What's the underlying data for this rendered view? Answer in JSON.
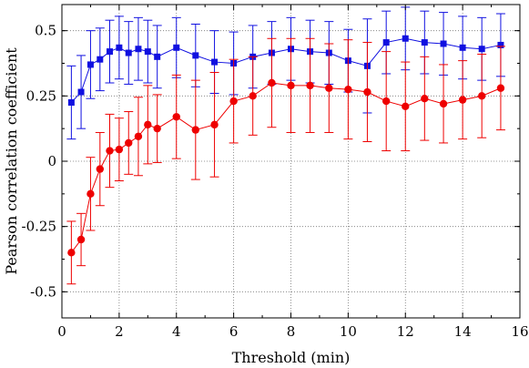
{
  "chart_data": {
    "type": "scatter",
    "xlabel": "Threshold (min)",
    "ylabel": "Pearson correlation coefficient",
    "xlim": [
      0,
      16
    ],
    "ylim": [
      -0.6,
      0.6
    ],
    "xticks": [
      0,
      2,
      4,
      6,
      8,
      10,
      12,
      14,
      16
    ],
    "xtick_labels": [
      "0",
      "2",
      "4",
      "6",
      "8",
      "10",
      "12",
      "14",
      "16"
    ],
    "yticks": [
      -0.5,
      -0.25,
      0,
      0.25,
      0.5
    ],
    "ytick_labels": [
      "-0.5",
      "-0.25",
      "0",
      "0.25",
      "0.5"
    ],
    "grid": true,
    "grid_style": "dotted",
    "series": [
      {
        "color": "#1010e0",
        "marker": "square",
        "x": [
          0.33,
          0.67,
          1.0,
          1.33,
          1.67,
          2.0,
          2.33,
          2.67,
          3.0,
          3.33,
          4.0,
          4.67,
          5.33,
          6.0,
          6.67,
          7.33,
          8.0,
          8.67,
          9.33,
          10.0,
          10.67,
          11.33,
          12.0,
          12.67,
          13.33,
          14.0,
          14.67,
          15.33
        ],
        "y": [
          0.225,
          0.265,
          0.37,
          0.39,
          0.42,
          0.435,
          0.415,
          0.43,
          0.42,
          0.4,
          0.435,
          0.405,
          0.38,
          0.375,
          0.4,
          0.415,
          0.43,
          0.42,
          0.415,
          0.385,
          0.365,
          0.455,
          0.47,
          0.455,
          0.45,
          0.435,
          0.43,
          0.445
        ],
        "err": [
          0.14,
          0.14,
          0.13,
          0.12,
          0.12,
          0.12,
          0.12,
          0.12,
          0.12,
          0.12,
          0.115,
          0.12,
          0.12,
          0.12,
          0.12,
          0.12,
          0.12,
          0.12,
          0.12,
          0.12,
          0.18,
          0.12,
          0.12,
          0.12,
          0.12,
          0.12,
          0.12,
          0.12
        ]
      },
      {
        "color": "#ee0000",
        "marker": "circle",
        "x": [
          0.33,
          0.67,
          1.0,
          1.33,
          1.67,
          2.0,
          2.33,
          2.67,
          3.0,
          3.33,
          4.0,
          4.67,
          5.33,
          6.0,
          6.67,
          7.33,
          8.0,
          8.67,
          9.33,
          10.0,
          10.67,
          11.33,
          12.0,
          12.67,
          13.33,
          14.0,
          14.67,
          15.33
        ],
        "y": [
          -0.35,
          -0.3,
          -0.125,
          -0.03,
          0.04,
          0.045,
          0.07,
          0.095,
          0.14,
          0.125,
          0.17,
          0.12,
          0.14,
          0.23,
          0.25,
          0.3,
          0.29,
          0.29,
          0.28,
          0.275,
          0.265,
          0.23,
          0.21,
          0.24,
          0.22,
          0.235,
          0.25,
          0.28
        ],
        "err": [
          0.12,
          0.1,
          0.14,
          0.14,
          0.14,
          0.12,
          0.12,
          0.15,
          0.15,
          0.13,
          0.16,
          0.19,
          0.2,
          0.16,
          0.15,
          0.17,
          0.18,
          0.18,
          0.17,
          0.19,
          0.19,
          0.19,
          0.17,
          0.16,
          0.15,
          0.15,
          0.16,
          0.16
        ]
      }
    ]
  }
}
